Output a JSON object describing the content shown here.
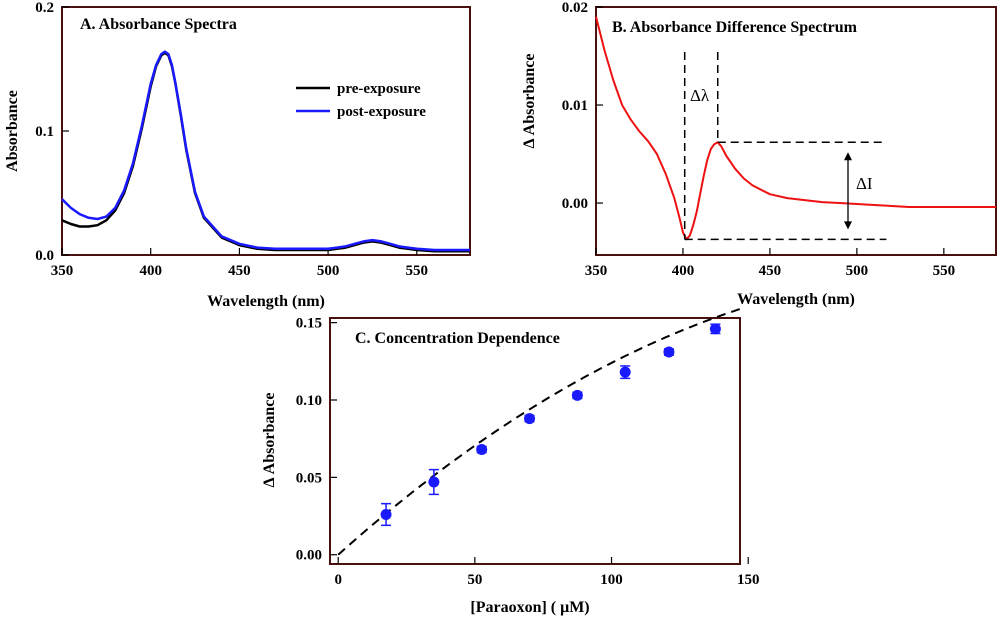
{
  "colors": {
    "pre": "#000000",
    "post": "#1a1aff",
    "diff": "#ee1111",
    "points": "#1a1aff",
    "frame": "#4a1010"
  },
  "chart_data": [
    {
      "id": "A",
      "type": "line",
      "title": "A. Absorbance Spectra",
      "xlabel": "Wavelength (nm)",
      "ylabel": "Absorbance",
      "xlim": [
        350,
        580
      ],
      "ylim": [
        0,
        0.2
      ],
      "xticks": [
        350,
        400,
        450,
        500,
        550
      ],
      "yticks": [
        0.0,
        0.1,
        0.2
      ],
      "yticklabels": [
        "0.0",
        "0.1",
        "0.2"
      ],
      "legend": {
        "position": "top-right",
        "entries": [
          "pre-exposure",
          "post-exposure"
        ]
      },
      "series": [
        {
          "name": "pre-exposure",
          "color": "#000000",
          "x": [
            350,
            355,
            360,
            365,
            370,
            375,
            380,
            385,
            390,
            395,
            400,
            403,
            406,
            408,
            410,
            412,
            414,
            417,
            420,
            425,
            430,
            440,
            450,
            460,
            470,
            480,
            490,
            500,
            505,
            510,
            515,
            520,
            525,
            530,
            535,
            540,
            545,
            550,
            560,
            570,
            580
          ],
          "y": [
            0.028,
            0.025,
            0.023,
            0.023,
            0.024,
            0.028,
            0.036,
            0.05,
            0.072,
            0.102,
            0.136,
            0.152,
            0.161,
            0.163,
            0.161,
            0.152,
            0.138,
            0.112,
            0.085,
            0.05,
            0.03,
            0.014,
            0.008,
            0.005,
            0.004,
            0.004,
            0.004,
            0.004,
            0.005,
            0.006,
            0.008,
            0.01,
            0.011,
            0.01,
            0.008,
            0.006,
            0.005,
            0.004,
            0.003,
            0.003,
            0.003
          ]
        },
        {
          "name": "post-exposure",
          "color": "#1a1aff",
          "x": [
            350,
            355,
            360,
            365,
            370,
            375,
            380,
            385,
            390,
            395,
            400,
            403,
            406,
            408,
            410,
            412,
            414,
            417,
            420,
            425,
            430,
            440,
            450,
            460,
            470,
            480,
            490,
            500,
            505,
            510,
            515,
            520,
            525,
            530,
            535,
            540,
            545,
            550,
            560,
            570,
            580
          ],
          "y": [
            0.045,
            0.038,
            0.033,
            0.03,
            0.029,
            0.031,
            0.038,
            0.052,
            0.074,
            0.104,
            0.138,
            0.153,
            0.162,
            0.164,
            0.162,
            0.153,
            0.138,
            0.113,
            0.086,
            0.051,
            0.031,
            0.015,
            0.009,
            0.006,
            0.005,
            0.005,
            0.005,
            0.005,
            0.006,
            0.007,
            0.009,
            0.011,
            0.012,
            0.011,
            0.009,
            0.007,
            0.006,
            0.005,
            0.004,
            0.004,
            0.004
          ]
        }
      ]
    },
    {
      "id": "B",
      "type": "line",
      "title": "B.  Absorbance Difference Spectrum",
      "xlabel": "Wavelength (nm)",
      "ylabel": "Δ Absorbance",
      "xlim": [
        350,
        580
      ],
      "ylim": [
        -0.0053,
        0.02
      ],
      "xticks": [
        350,
        400,
        450,
        500,
        550
      ],
      "yticks": [
        0.0,
        0.01,
        0.02
      ],
      "yticklabels": [
        "0.00",
        "0.01",
        "0.02"
      ],
      "annotations": {
        "delta_lambda": {
          "text": "Δλ",
          "from_x": 401,
          "to_x": 420
        },
        "delta_i": {
          "text": "ΔI",
          "from_y": -0.0037,
          "to_y": 0.0062
        }
      },
      "series": [
        {
          "name": "difference",
          "color": "#ee1111",
          "x": [
            350,
            355,
            360,
            365,
            370,
            375,
            380,
            385,
            390,
            395,
            398,
            400,
            402,
            404,
            406,
            408,
            410,
            412,
            414,
            416,
            418,
            420,
            422,
            425,
            430,
            435,
            440,
            450,
            460,
            470,
            480,
            490,
            500,
            510,
            520,
            530,
            540,
            550,
            560,
            570,
            580
          ],
          "y": [
            0.019,
            0.0155,
            0.0125,
            0.01,
            0.0085,
            0.0073,
            0.0063,
            0.005,
            0.003,
            0.0005,
            -0.0015,
            -0.003,
            -0.0037,
            -0.0033,
            -0.0022,
            -0.0008,
            0.001,
            0.0028,
            0.0044,
            0.0055,
            0.006,
            0.0062,
            0.0058,
            0.0048,
            0.0035,
            0.0025,
            0.0018,
            0.0009,
            0.0005,
            0.0003,
            0.0001,
            0.0,
            -0.0001,
            -0.0002,
            -0.0003,
            -0.0004,
            -0.0004,
            -0.0004,
            -0.0004,
            -0.0004,
            -0.0004
          ]
        }
      ]
    },
    {
      "id": "C",
      "type": "scatter",
      "title": "C. Concentration Dependence",
      "xlabel": "[Paraoxon] ( μM)",
      "ylabel": "Δ Absorbance",
      "xlim": [
        -3,
        147
      ],
      "ylim": [
        -0.006,
        0.153
      ],
      "xticks": [
        0,
        50,
        100,
        150
      ],
      "yticks": [
        0.0,
        0.05,
        0.1,
        0.15
      ],
      "yticklabels": [
        "0.00",
        "0.05",
        "0.10",
        "0.15"
      ],
      "points": {
        "x": [
          17.5,
          35,
          52.5,
          70,
          87.5,
          105,
          121,
          138
        ],
        "y": [
          0.026,
          0.047,
          0.068,
          0.088,
          0.103,
          0.118,
          0.131,
          0.146
        ],
        "err": [
          0.007,
          0.008,
          0.002,
          0.002,
          0.002,
          0.004,
          0.002,
          0.003
        ]
      },
      "fit": {
        "style": "dashed",
        "model": "y = 0.00158x - 0.0000034x^2"
      }
    }
  ]
}
